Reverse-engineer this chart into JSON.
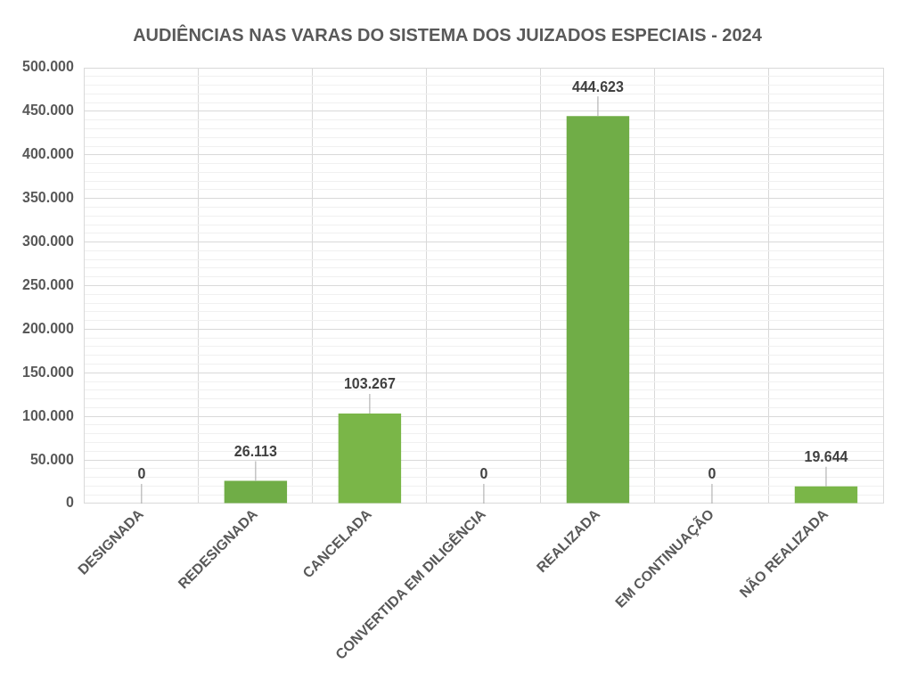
{
  "chart_data": {
    "type": "bar",
    "title": "AUDIÊNCIAS NAS VARAS DO SISTEMA DOS JUIZADOS ESPECIAIS - 2024",
    "categories": [
      "DESIGNADA",
      "REDESIGNADA",
      "CANCELADA",
      "CONVERTIDA EM DILIGÊNCIA",
      "REALIZADA",
      "EM CONTINUAÇÃO",
      "NÃO REALIZADA"
    ],
    "values": [
      0,
      26113,
      103267,
      0,
      444623,
      0,
      19644
    ],
    "colors": [
      "#70ad47",
      "#70ad47",
      "#7ab648",
      "#70ad47",
      "#70ad47",
      "#70ad47",
      "#7ab648"
    ],
    "value_labels": [
      "0",
      "26.113",
      "103.267",
      "0",
      "444.623",
      "0",
      "19.644"
    ],
    "ylim": [
      0,
      500000
    ],
    "yticks": [
      0,
      {
        "value": 50000,
        "label": "50.000"
      },
      {
        "value": 100000,
        "label": "100.000"
      },
      {
        "value": 150000,
        "label": "150.000"
      },
      {
        "value": 200000,
        "label": "200.000"
      },
      {
        "value": 250000,
        "label": "250.000"
      },
      {
        "value": 300000,
        "label": "300.000"
      },
      {
        "value": 350000,
        "label": "350.000"
      },
      {
        "value": 400000,
        "label": "400.000"
      },
      {
        "value": 450000,
        "label": "450.000"
      },
      {
        "value": 500000,
        "label": "500.000"
      }
    ],
    "grid": true,
    "legend": false
  }
}
